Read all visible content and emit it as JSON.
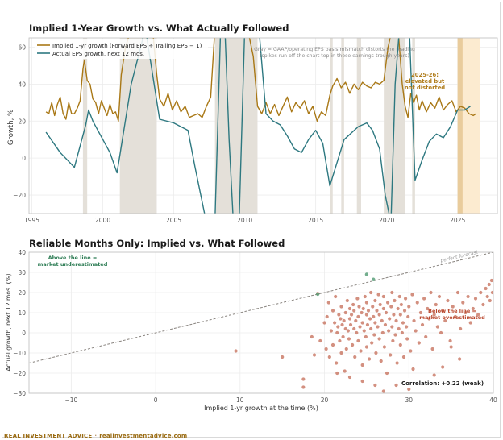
{
  "colors": {
    "implied": "#a97816",
    "actual": "#2d7880",
    "distorted_band": "#e4e0d9",
    "recent_band": "#fcebd0",
    "recent_band_dark": "#e9cc9c",
    "scatter_point": "#c0614a",
    "above_point": "#5aa07a",
    "above_text": "#2e7d55",
    "below_text": "#b9462c",
    "recent_text": "#b07d1c",
    "reference_line": "#8a8580",
    "brand": "#9a6b12"
  },
  "chart_data": [
    {
      "type": "line",
      "title": "Implied 1-Year Growth vs. What Actually Followed",
      "xlabel": "",
      "ylabel": "Growth, %",
      "xlim": [
        1994.8,
        2027.8
      ],
      "ylim": [
        -30,
        65
      ],
      "x_ticks": [
        1995,
        2000,
        2005,
        2010,
        2015,
        2020,
        2025
      ],
      "y_ticks": [
        -20,
        0,
        20,
        40,
        60
      ],
      "grid": true,
      "legend_position": "top-left",
      "distorted_bands": [
        [
          1998.6,
          1998.9
        ],
        [
          2001.2,
          2003.8
        ],
        [
          2007.9,
          2010.9
        ],
        [
          2016.0,
          2016.2
        ],
        [
          2016.8,
          2017.0
        ],
        [
          2017.9,
          2018.2
        ],
        [
          2019.8,
          2021.3
        ],
        [
          2021.8,
          2022.0
        ]
      ],
      "recent_band": [
        2025.0,
        2026.6
      ],
      "recent_band_dark": [
        2025.0,
        2025.35
      ],
      "band_note": "Gray = GAAP/operating EPS basis mismatch distorts the reading (spikes run off the chart top in these earnings-trough years)",
      "recent_note": [
        "2025-26:",
        "elevated but",
        "not distorted"
      ],
      "series": [
        {
          "name": "Implied 1-yr growth (Forward EPS ÷ Trailing EPS − 1)",
          "role": "implied",
          "x": [
            1996.0,
            1996.2,
            1996.4,
            1996.6,
            1996.8,
            1997.0,
            1997.2,
            1997.4,
            1997.6,
            1997.8,
            1998.0,
            1998.2,
            1998.4,
            1998.6,
            1998.7,
            1998.9,
            1999.1,
            1999.3,
            1999.5,
            1999.7,
            1999.9,
            2000.1,
            2000.3,
            2000.5,
            2000.7,
            2000.9,
            2001.1,
            2001.3,
            2001.6,
            2002.0,
            2002.5,
            2003.0,
            2003.5,
            2003.8,
            2004.0,
            2004.3,
            2004.6,
            2004.9,
            2005.2,
            2005.5,
            2005.8,
            2006.1,
            2006.4,
            2006.7,
            2007.0,
            2007.3,
            2007.6,
            2007.9,
            2008.3,
            2008.8,
            2009.5,
            2010.2,
            2010.6,
            2010.9,
            2011.2,
            2011.5,
            2011.8,
            2012.1,
            2012.4,
            2012.7,
            2013.0,
            2013.3,
            2013.6,
            2013.9,
            2014.2,
            2014.5,
            2014.8,
            2015.1,
            2015.4,
            2015.7,
            2016.0,
            2016.2,
            2016.5,
            2016.8,
            2017.1,
            2017.4,
            2017.7,
            2018.0,
            2018.3,
            2018.6,
            2018.9,
            2019.2,
            2019.5,
            2019.8,
            2020.1,
            2020.4,
            2020.8,
            2021.1,
            2021.3,
            2021.5,
            2021.7,
            2021.9,
            2022.1,
            2022.3,
            2022.5,
            2022.8,
            2023.1,
            2023.4,
            2023.7,
            2024.0,
            2024.3,
            2024.6,
            2024.9,
            2025.2,
            2025.5,
            2025.8,
            2026.1,
            2026.3
          ],
          "values": [
            25,
            24,
            30,
            23,
            29,
            33,
            24,
            21,
            30,
            24,
            24,
            27,
            31,
            48,
            53,
            42,
            40,
            32,
            30,
            24,
            31,
            27,
            23,
            29,
            24,
            25,
            20,
            45,
            60,
            70,
            70,
            70,
            70,
            45,
            32,
            28,
            35,
            26,
            31,
            25,
            28,
            22,
            23,
            24,
            22,
            28,
            33,
            70,
            70,
            70,
            70,
            70,
            55,
            28,
            24,
            30,
            24,
            29,
            23,
            28,
            33,
            25,
            30,
            27,
            31,
            24,
            28,
            20,
            25,
            23,
            34,
            39,
            43,
            38,
            41,
            35,
            40,
            37,
            41,
            39,
            38,
            41,
            40,
            42,
            60,
            70,
            70,
            40,
            28,
            22,
            35,
            30,
            34,
            26,
            31,
            25,
            30,
            27,
            33,
            26,
            29,
            31,
            25,
            28,
            27,
            24,
            23,
            24
          ]
        },
        {
          "name": "Actual EPS growth, next 12 mos.",
          "role": "actual",
          "x": [
            1996.0,
            1997.0,
            1998.0,
            1998.8,
            1999.0,
            1999.3,
            2000.0,
            2000.5,
            2001.0,
            2002.0,
            2003.0,
            2004.0,
            2005.0,
            2006.0,
            2006.5,
            2007.3,
            2007.9,
            2008.3,
            2008.6,
            2008.9,
            2009.2,
            2009.6,
            2010.0,
            2010.3,
            2010.7,
            2011.0,
            2011.5,
            2012.0,
            2012.5,
            2013.0,
            2013.5,
            2014.0,
            2014.5,
            2015.0,
            2015.5,
            2016.0,
            2017.0,
            2018.0,
            2018.6,
            2019.0,
            2019.5,
            2019.9,
            2020.3,
            2020.6,
            2020.9,
            2021.3,
            2021.6,
            2022.0,
            2022.5,
            2023.0,
            2023.5,
            2024.0,
            2024.5,
            2025.0,
            2025.5,
            2025.9
          ],
          "values": [
            14,
            3,
            -5,
            18,
            26,
            20,
            10,
            3,
            -8,
            40,
            70,
            21,
            19,
            15,
            -5,
            -35,
            -35,
            70,
            70,
            10,
            -35,
            -35,
            70,
            70,
            70,
            70,
            24,
            20,
            18,
            12,
            5,
            3,
            10,
            15,
            8,
            -15,
            10,
            17,
            19,
            15,
            5,
            -20,
            -35,
            40,
            70,
            70,
            70,
            -12,
            -1,
            9,
            13,
            11,
            17,
            26,
            26,
            28
          ]
        }
      ]
    },
    {
      "type": "scatter",
      "title": "Reliable Months Only: Implied vs. What Followed",
      "xlabel": "Implied 1-yr growth at the time (%)",
      "ylabel": "Actual growth, next 12 mos. (%)",
      "xlim": [
        -15,
        40
      ],
      "ylim": [
        -30,
        40
      ],
      "x_ticks": [
        -10,
        0,
        10,
        20,
        30,
        40
      ],
      "y_ticks": [
        -30,
        -20,
        -10,
        0,
        10,
        20,
        30,
        40
      ],
      "grid": true,
      "reference_line_label": "perfect forecast",
      "above_label": [
        "Above the line =",
        "market underestimated"
      ],
      "below_label": [
        "Below the line =",
        "market overestimated"
      ],
      "correlation_label": "Correlation: +0.22 (weak)",
      "points": [
        [
          9.5,
          -9
        ],
        [
          15,
          -12
        ],
        [
          17.5,
          -23
        ],
        [
          17.5,
          -27
        ],
        [
          18.5,
          -2
        ],
        [
          18.8,
          -11
        ],
        [
          19.2,
          19.5
        ],
        [
          19.5,
          -4
        ],
        [
          20,
          5
        ],
        [
          20.2,
          -8
        ],
        [
          20.3,
          8
        ],
        [
          20.5,
          15
        ],
        [
          20.6,
          -12
        ],
        [
          20.8,
          1
        ],
        [
          21,
          -6
        ],
        [
          21,
          11
        ],
        [
          21.2,
          5
        ],
        [
          21.3,
          18
        ],
        [
          21.4,
          -15
        ],
        [
          21.5,
          0
        ],
        [
          21.6,
          3
        ],
        [
          21.7,
          9
        ],
        [
          21.8,
          -4
        ],
        [
          21.9,
          7
        ],
        [
          22,
          -10
        ],
        [
          22,
          13
        ],
        [
          22.1,
          4
        ],
        [
          22.2,
          -2
        ],
        [
          22.3,
          6
        ],
        [
          22.4,
          -19
        ],
        [
          22.5,
          10
        ],
        [
          22.5,
          2
        ],
        [
          22.6,
          -8
        ],
        [
          22.7,
          16
        ],
        [
          22.8,
          1
        ],
        [
          22.9,
          -3
        ],
        [
          23,
          12
        ],
        [
          23,
          7
        ],
        [
          23,
          -22
        ],
        [
          23.1,
          4
        ],
        [
          23.2,
          9
        ],
        [
          23.3,
          -6
        ],
        [
          23.4,
          14
        ],
        [
          23.5,
          2
        ],
        [
          23.5,
          11
        ],
        [
          23.6,
          -12
        ],
        [
          23.7,
          6
        ],
        [
          23.8,
          0
        ],
        [
          23.9,
          17
        ],
        [
          24,
          8
        ],
        [
          24,
          -4
        ],
        [
          24.1,
          13
        ],
        [
          24.2,
          3
        ],
        [
          24.3,
          -9
        ],
        [
          24.4,
          10
        ],
        [
          24.5,
          5
        ],
        [
          24.5,
          -16
        ],
        [
          24.6,
          12
        ],
        [
          24.7,
          1
        ],
        [
          24.8,
          18
        ],
        [
          24.9,
          -2
        ],
        [
          25,
          9
        ],
        [
          25,
          15
        ],
        [
          25,
          -7
        ],
        [
          25.1,
          4
        ],
        [
          25.2,
          11
        ],
        [
          25.3,
          -13
        ],
        [
          25.4,
          7
        ],
        [
          25.5,
          2
        ],
        [
          25.5,
          20
        ],
        [
          25.6,
          -5
        ],
        [
          25.7,
          13
        ],
        [
          25.8,
          8
        ],
        [
          25.9,
          -1
        ],
        [
          26,
          16
        ],
        [
          26,
          5
        ],
        [
          26.1,
          -10
        ],
        [
          26.2,
          11
        ],
        [
          26.3,
          3
        ],
        [
          26.4,
          19
        ],
        [
          26.5,
          -3
        ],
        [
          26.5,
          9
        ],
        [
          26.6,
          14
        ],
        [
          26.7,
          -14
        ],
        [
          26.8,
          6
        ],
        [
          26.9,
          0
        ],
        [
          27,
          12
        ],
        [
          27,
          18
        ],
        [
          27.1,
          -7
        ],
        [
          27.2,
          4
        ],
        [
          27.3,
          10
        ],
        [
          27.4,
          -20
        ],
        [
          27.5,
          15
        ],
        [
          27.6,
          1
        ],
        [
          27.7,
          7
        ],
        [
          27.8,
          -11
        ],
        [
          27.9,
          13
        ],
        [
          28,
          20
        ],
        [
          28,
          3
        ],
        [
          28.1,
          -4
        ],
        [
          28.2,
          9
        ],
        [
          28.3,
          16
        ],
        [
          28.4,
          -1
        ],
        [
          28.5,
          6
        ],
        [
          28.6,
          -15
        ],
        [
          28.7,
          12
        ],
        [
          28.8,
          2
        ],
        [
          28.9,
          18
        ],
        [
          29,
          -6
        ],
        [
          29,
          9
        ],
        [
          29.1,
          14
        ],
        [
          29.2,
          0
        ],
        [
          29.3,
          5
        ],
        [
          29.4,
          -12
        ],
        [
          29.5,
          11
        ],
        [
          29.6,
          17
        ],
        [
          29.7,
          3
        ],
        [
          29.8,
          -3
        ],
        [
          29.9,
          8
        ],
        [
          30,
          13
        ],
        [
          30.2,
          -9
        ],
        [
          30.4,
          19
        ],
        [
          30.6,
          6
        ],
        [
          30.8,
          1
        ],
        [
          31,
          15
        ],
        [
          31.2,
          -5
        ],
        [
          31.4,
          10
        ],
        [
          31.6,
          4
        ],
        [
          31.8,
          17
        ],
        [
          32,
          -2
        ],
        [
          32.2,
          12
        ],
        [
          32.4,
          7
        ],
        [
          32.6,
          20
        ],
        [
          32.8,
          -8
        ],
        [
          33,
          9
        ],
        [
          33.2,
          14
        ],
        [
          33.4,
          3
        ],
        [
          33.6,
          18
        ],
        [
          33.8,
          0
        ],
        [
          34,
          11
        ],
        [
          34.3,
          6
        ],
        [
          34.6,
          16
        ],
        [
          34.9,
          -4
        ],
        [
          35.2,
          13
        ],
        [
          35.5,
          8
        ],
        [
          35.8,
          20
        ],
        [
          36.1,
          2
        ],
        [
          36.4,
          15
        ],
        [
          36.7,
          10
        ],
        [
          37,
          18
        ],
        [
          37.3,
          5
        ],
        [
          37.6,
          12
        ],
        [
          37.9,
          17
        ],
        [
          38.2,
          9
        ],
        [
          38.5,
          20
        ],
        [
          38.8,
          14
        ],
        [
          39.1,
          22
        ],
        [
          39.3,
          18
        ],
        [
          39.5,
          24
        ],
        [
          39.6,
          16
        ],
        [
          39.8,
          26
        ],
        [
          39.9,
          20
        ],
        [
          35,
          -7
        ],
        [
          36,
          -13
        ],
        [
          30,
          -28
        ],
        [
          27,
          -29
        ],
        [
          28.5,
          -26
        ],
        [
          34,
          -17
        ],
        [
          21.5,
          -20
        ],
        [
          24.5,
          -24
        ],
        [
          33,
          -21
        ],
        [
          26,
          -26
        ],
        [
          30.5,
          -18
        ]
      ],
      "above_points": [
        [
          25,
          29
        ],
        [
          25.8,
          26.5
        ],
        [
          19.2,
          19.2
        ]
      ]
    }
  ],
  "footer": {
    "brand": "REAL INVESTMENT ADVICE",
    "separator": "·",
    "url": "realinvestmentadvice.com"
  }
}
